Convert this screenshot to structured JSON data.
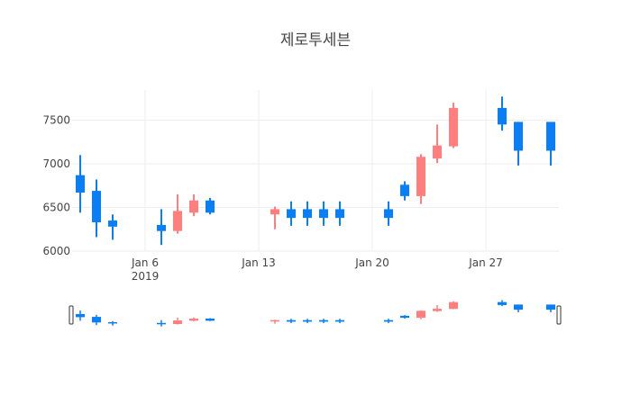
{
  "chart_data": {
    "type": "candlestick",
    "title": "제로투세븐",
    "xlabel": "",
    "ylabel": "",
    "ylim": [
      6000,
      7850
    ],
    "grid": true,
    "legend": "none",
    "colors": {
      "increasing": "#ff7f7f",
      "decreasing": "#0a7ff5"
    },
    "x_ticks": [
      {
        "label": "Jan 6",
        "sub": "2019",
        "day": 6
      },
      {
        "label": "Jan 13",
        "sub": "",
        "day": 13
      },
      {
        "label": "Jan 20",
        "sub": "",
        "day": 20
      },
      {
        "label": "Jan 27",
        "sub": "",
        "day": 27
      }
    ],
    "y_ticks": [
      6000,
      6500,
      7000,
      7500
    ],
    "candles": [
      {
        "date": "2019-01-02",
        "day": 2,
        "open": 6870,
        "high": 7100,
        "low": 6440,
        "close": 6670
      },
      {
        "date": "2019-01-03",
        "day": 3,
        "open": 6690,
        "high": 6820,
        "low": 6160,
        "close": 6330
      },
      {
        "date": "2019-01-04",
        "day": 4,
        "open": 6350,
        "high": 6420,
        "low": 6130,
        "close": 6280
      },
      {
        "date": "2019-01-07",
        "day": 7,
        "open": 6300,
        "high": 6480,
        "low": 6070,
        "close": 6230
      },
      {
        "date": "2019-01-08",
        "day": 8,
        "open": 6230,
        "high": 6650,
        "low": 6200,
        "close": 6460
      },
      {
        "date": "2019-01-09",
        "day": 9,
        "open": 6440,
        "high": 6650,
        "low": 6400,
        "close": 6580
      },
      {
        "date": "2019-01-10",
        "day": 10,
        "open": 6580,
        "high": 6610,
        "low": 6420,
        "close": 6440
      },
      {
        "date": "2019-01-14",
        "day": 14,
        "open": 6420,
        "high": 6510,
        "low": 6250,
        "close": 6480
      },
      {
        "date": "2019-01-15",
        "day": 15,
        "open": 6480,
        "high": 6570,
        "low": 6290,
        "close": 6380
      },
      {
        "date": "2019-01-16",
        "day": 16,
        "open": 6480,
        "high": 6570,
        "low": 6290,
        "close": 6380
      },
      {
        "date": "2019-01-17",
        "day": 17,
        "open": 6480,
        "high": 6570,
        "low": 6290,
        "close": 6380
      },
      {
        "date": "2019-01-18",
        "day": 18,
        "open": 6480,
        "high": 6570,
        "low": 6290,
        "close": 6380
      },
      {
        "date": "2019-01-21",
        "day": 21,
        "open": 6480,
        "high": 6570,
        "low": 6290,
        "close": 6380
      },
      {
        "date": "2019-01-22",
        "day": 22,
        "open": 6760,
        "high": 6800,
        "low": 6580,
        "close": 6630
      },
      {
        "date": "2019-01-23",
        "day": 23,
        "open": 6630,
        "high": 7110,
        "low": 6540,
        "close": 7080
      },
      {
        "date": "2019-01-24",
        "day": 24,
        "open": 7060,
        "high": 7450,
        "low": 7010,
        "close": 7210
      },
      {
        "date": "2019-01-25",
        "day": 25,
        "open": 7200,
        "high": 7700,
        "low": 7180,
        "close": 7640
      },
      {
        "date": "2019-01-28",
        "day": 28,
        "open": 7640,
        "high": 7770,
        "low": 7380,
        "close": 7450
      },
      {
        "date": "2019-01-29",
        "day": 29,
        "open": 7480,
        "high": 7480,
        "low": 6980,
        "close": 7150
      },
      {
        "date": "2019-01-31",
        "day": 31,
        "open": 7480,
        "high": 7480,
        "low": 6980,
        "close": 7150
      }
    ],
    "rangeslider": {
      "visible": true
    }
  }
}
